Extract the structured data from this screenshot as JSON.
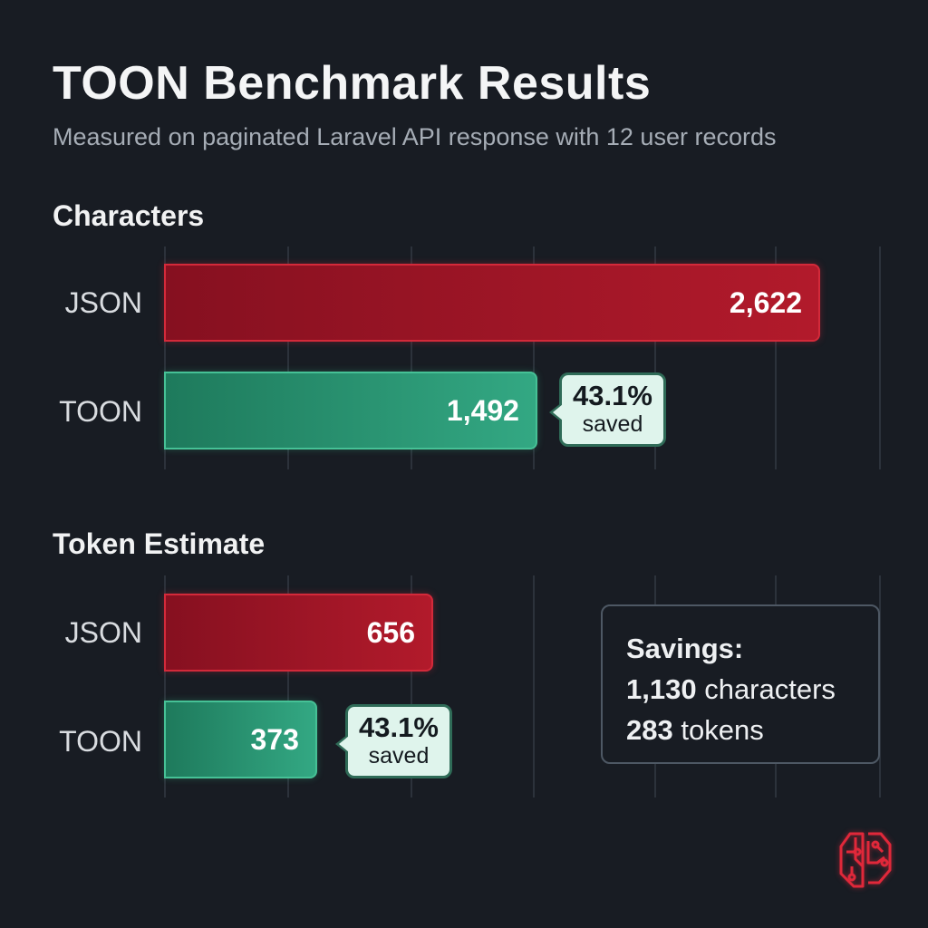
{
  "title": "TOON Benchmark Results",
  "subtitle": "Measured on paginated Laravel API response with 12 user records",
  "colors": {
    "json": "#b21a2b",
    "toon": "#33a883",
    "background": "#181c23"
  },
  "chart_data": [
    {
      "type": "bar",
      "orientation": "horizontal",
      "title": "Characters",
      "categories": [
        "JSON",
        "TOON"
      ],
      "values": [
        2622,
        1492
      ],
      "value_labels": [
        "2,622",
        "1,492"
      ],
      "annotation": {
        "pct": "43.1%",
        "label": "saved"
      }
    },
    {
      "type": "bar",
      "orientation": "horizontal",
      "title": "Token Estimate",
      "categories": [
        "JSON",
        "TOON"
      ],
      "values": [
        656,
        373
      ],
      "value_labels": [
        "656",
        "373"
      ],
      "annotation": {
        "pct": "43.1%",
        "label": "saved"
      }
    }
  ],
  "summary": {
    "heading": "Savings:",
    "chars_value": "1,130",
    "chars_unit": "characters",
    "tokens_value": "283",
    "tokens_unit": "tokens"
  },
  "logo": "brain-circuit-icon"
}
